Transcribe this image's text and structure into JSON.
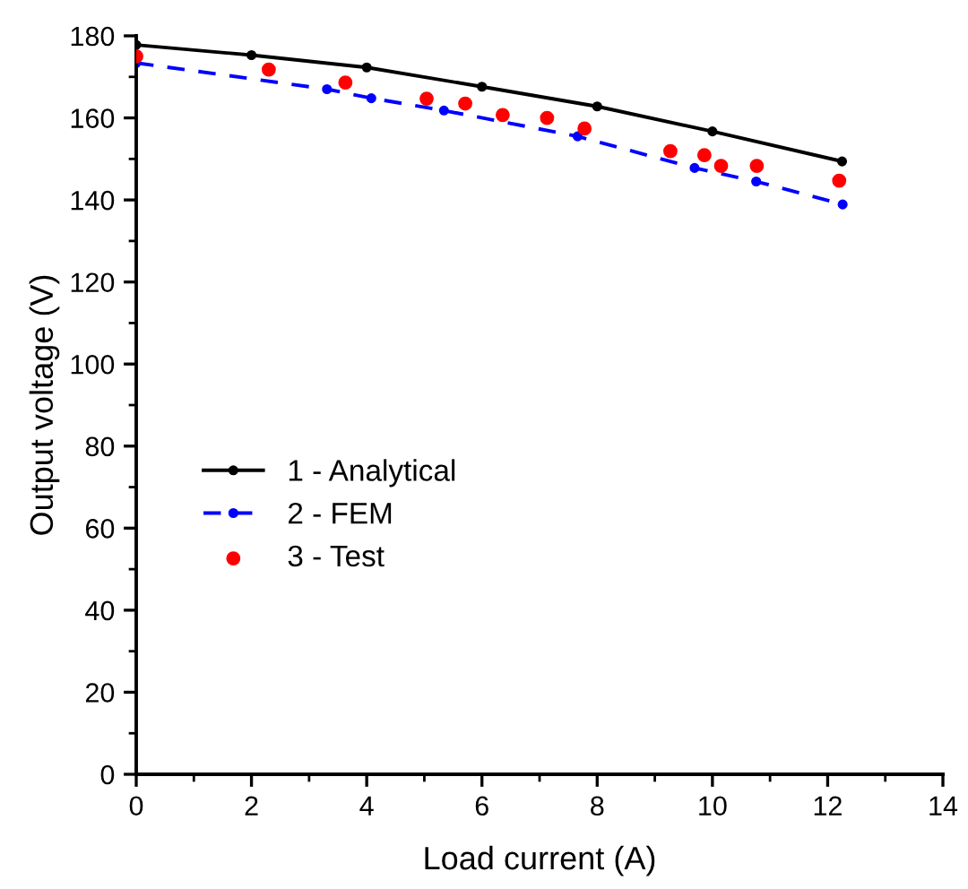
{
  "chart_data": {
    "type": "line",
    "xlabel": "Load current (A)",
    "ylabel": "Output voltage (V)",
    "xlim": [
      0,
      14
    ],
    "xticks": [
      0,
      2,
      4,
      6,
      8,
      10,
      12,
      14
    ],
    "ylim": [
      0,
      180
    ],
    "yticks": [
      0,
      20,
      40,
      60,
      80,
      100,
      120,
      140,
      160,
      180
    ],
    "grid": false,
    "legend": "center left",
    "series": [
      {
        "name": "1 - Analytical",
        "color": "#000000",
        "marker": "circle",
        "line_style": "solid",
        "x": [
          0,
          2,
          4,
          6,
          8,
          10,
          12.25
        ],
        "values": [
          177.8,
          175.3,
          172.3,
          167.6,
          162.8,
          156.7,
          149.4
        ]
      },
      {
        "name": "2 - FEM",
        "color": "#0000ff",
        "marker": "circle",
        "line_style": "dashed",
        "x": [
          0,
          3.31,
          4.08,
          5.34,
          7.66,
          9.69,
          10.76,
          12.26
        ],
        "values": [
          173.4,
          167.0,
          164.8,
          161.8,
          155.5,
          147.8,
          144.5,
          138.9
        ]
      },
      {
        "name": "3 - Test",
        "type": "scatter",
        "color": "#ff0000",
        "marker": "circle",
        "x": [
          0,
          2.3,
          3.63,
          5.04,
          5.71,
          6.36,
          7.13,
          7.78,
          9.27,
          9.86,
          10.15,
          10.77,
          12.2
        ],
        "values": [
          175.0,
          171.8,
          168.6,
          164.7,
          163.5,
          160.7,
          160.0,
          157.4,
          151.9,
          150.9,
          148.3,
          148.3,
          144.7
        ]
      }
    ]
  }
}
